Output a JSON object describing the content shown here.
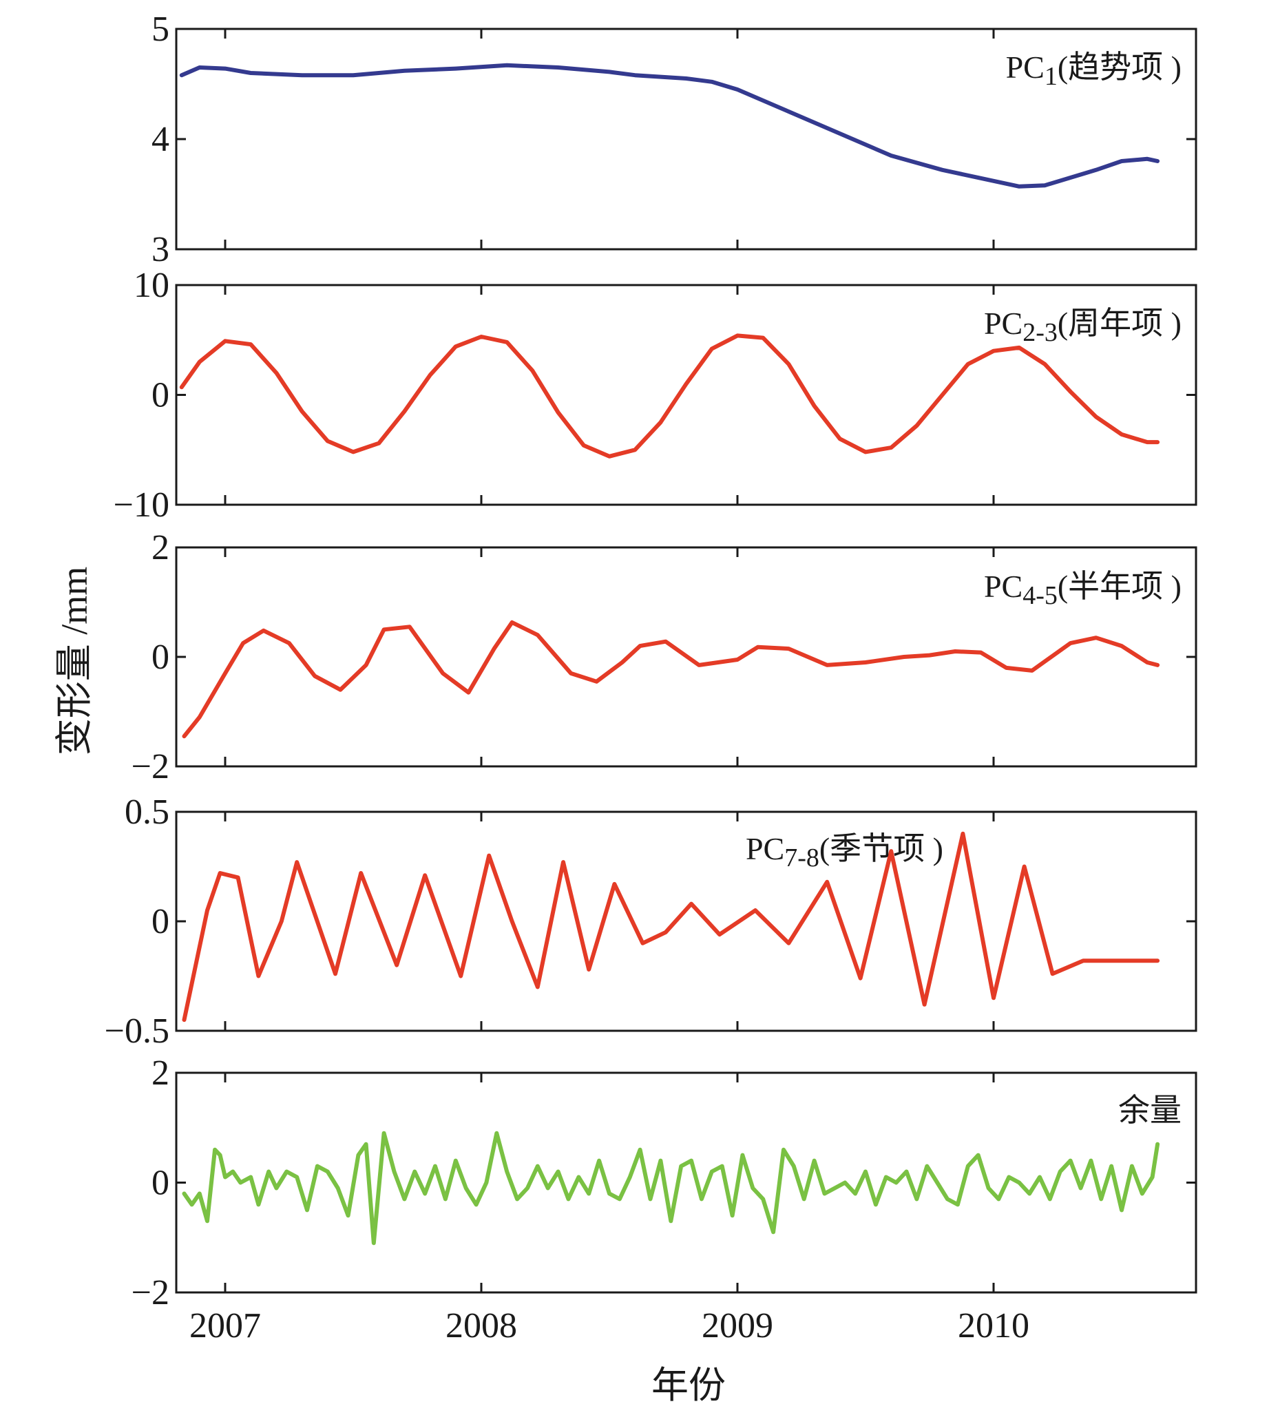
{
  "figure": {
    "ylabel": "变形量 /mm",
    "xlabel": "年份",
    "xticks": [
      "2007",
      "2008",
      "2009",
      "2010"
    ]
  },
  "chart_data": [
    {
      "type": "line",
      "label": "PC",
      "label_sub": "1",
      "label_suffix": "(趋势项 )",
      "color": "#343a8f",
      "ylim": [
        3,
        5
      ],
      "yticks": [
        "5",
        "4",
        "3"
      ],
      "xlim": [
        2006.8,
        2010.8
      ],
      "x": [
        2006.83,
        2006.9,
        2007.0,
        2007.1,
        2007.3,
        2007.5,
        2007.7,
        2007.9,
        2008.1,
        2008.3,
        2008.5,
        2008.6,
        2008.8,
        2008.9,
        2009.0,
        2009.2,
        2009.4,
        2009.6,
        2009.8,
        2010.0,
        2010.1,
        2010.2,
        2010.3,
        2010.4,
        2010.5,
        2010.6,
        2010.64
      ],
      "values": [
        4.58,
        4.65,
        4.64,
        4.6,
        4.58,
        4.58,
        4.62,
        4.64,
        4.67,
        4.65,
        4.61,
        4.58,
        4.55,
        4.52,
        4.45,
        4.25,
        4.05,
        3.85,
        3.72,
        3.62,
        3.57,
        3.58,
        3.65,
        3.72,
        3.8,
        3.82,
        3.8
      ]
    },
    {
      "type": "line",
      "label": "PC",
      "label_sub": "2-3",
      "label_suffix": "(周年项 )",
      "color": "#e43b26",
      "ylim": [
        -10,
        10
      ],
      "yticks": [
        "10",
        "0",
        "−10"
      ],
      "xlim": [
        2006.8,
        2010.8
      ],
      "x": [
        2006.83,
        2006.9,
        2007.0,
        2007.1,
        2007.2,
        2007.3,
        2007.4,
        2007.5,
        2007.6,
        2007.7,
        2007.8,
        2007.9,
        2008.0,
        2008.1,
        2008.2,
        2008.3,
        2008.4,
        2008.5,
        2008.6,
        2008.7,
        2008.8,
        2008.9,
        2009.0,
        2009.1,
        2009.2,
        2009.3,
        2009.4,
        2009.5,
        2009.6,
        2009.7,
        2009.8,
        2009.9,
        2010.0,
        2010.1,
        2010.2,
        2010.3,
        2010.4,
        2010.5,
        2010.6,
        2010.64
      ],
      "values": [
        0.7,
        3.0,
        4.9,
        4.6,
        2.0,
        -1.5,
        -4.2,
        -5.2,
        -4.4,
        -1.5,
        1.8,
        4.4,
        5.3,
        4.8,
        2.2,
        -1.6,
        -4.6,
        -5.6,
        -5.0,
        -2.5,
        1.0,
        4.2,
        5.4,
        5.2,
        2.8,
        -1.0,
        -4.0,
        -5.2,
        -4.8,
        -2.8,
        0.0,
        2.8,
        4.0,
        4.3,
        2.8,
        0.3,
        -2.0,
        -3.6,
        -4.3,
        -4.3
      ]
    },
    {
      "type": "line",
      "label": "PC",
      "label_sub": "4-5",
      "label_suffix": "(半年项 )",
      "color": "#e43b26",
      "ylim": [
        -2,
        2
      ],
      "yticks": [
        "2",
        "0",
        "−2"
      ],
      "xlim": [
        2006.8,
        2010.8
      ],
      "x": [
        2006.84,
        2006.9,
        2007.0,
        2007.07,
        2007.15,
        2007.25,
        2007.35,
        2007.45,
        2007.55,
        2007.62,
        2007.72,
        2007.85,
        2007.95,
        2008.05,
        2008.12,
        2008.22,
        2008.35,
        2008.45,
        2008.55,
        2008.62,
        2008.72,
        2008.85,
        2009.0,
        2009.08,
        2009.2,
        2009.35,
        2009.5,
        2009.65,
        2009.75,
        2009.85,
        2009.95,
        2010.05,
        2010.15,
        2010.3,
        2010.4,
        2010.5,
        2010.6,
        2010.64
      ],
      "values": [
        -1.45,
        -1.1,
        -0.3,
        0.25,
        0.48,
        0.25,
        -0.35,
        -0.6,
        -0.15,
        0.5,
        0.55,
        -0.3,
        -0.65,
        0.15,
        0.63,
        0.4,
        -0.3,
        -0.45,
        -0.1,
        0.2,
        0.28,
        -0.15,
        -0.05,
        0.18,
        0.15,
        -0.15,
        -0.1,
        0.0,
        0.03,
        0.1,
        0.08,
        -0.2,
        -0.25,
        0.25,
        0.35,
        0.2,
        -0.1,
        -0.15
      ]
    },
    {
      "type": "line",
      "label": "PC",
      "label_sub": "7-8",
      "label_suffix": "(季节项 )",
      "color": "#e43b26",
      "ylim": [
        -0.5,
        0.5
      ],
      "yticks": [
        "0.5",
        "0",
        "−0.5"
      ],
      "xlim": [
        2006.8,
        2010.8
      ],
      "x": [
        2006.84,
        2006.93,
        2006.98,
        2007.05,
        2007.13,
        2007.22,
        2007.28,
        2007.43,
        2007.53,
        2007.67,
        2007.78,
        2007.92,
        2008.03,
        2008.12,
        2008.22,
        2008.32,
        2008.42,
        2008.52,
        2008.63,
        2008.72,
        2008.82,
        2008.93,
        2009.07,
        2009.2,
        2009.35,
        2009.48,
        2009.6,
        2009.73,
        2009.88,
        2010.0,
        2010.12,
        2010.23,
        2010.35,
        2010.47,
        2010.58,
        2010.64
      ],
      "values": [
        -0.45,
        0.05,
        0.22,
        0.2,
        -0.25,
        0.0,
        0.27,
        -0.24,
        0.22,
        -0.2,
        0.21,
        -0.25,
        0.3,
        0.0,
        -0.3,
        0.27,
        -0.22,
        0.17,
        -0.1,
        -0.05,
        0.08,
        -0.06,
        0.05,
        -0.1,
        0.18,
        -0.26,
        0.32,
        -0.38,
        0.4,
        -0.35,
        0.25,
        -0.24,
        -0.18,
        -0.18,
        -0.18,
        -0.18
      ]
    },
    {
      "type": "line",
      "label": "余量",
      "color": "#7ac143",
      "ylim": [
        -2,
        2
      ],
      "yticks": [
        "2",
        "0",
        "−2"
      ],
      "xlim": [
        2006.8,
        2010.8
      ],
      "x": [
        2006.84,
        2006.87,
        2006.9,
        2006.93,
        2006.96,
        2006.98,
        2007.0,
        2007.03,
        2007.06,
        2007.1,
        2007.13,
        2007.17,
        2007.2,
        2007.24,
        2007.28,
        2007.32,
        2007.36,
        2007.4,
        2007.44,
        2007.48,
        2007.52,
        2007.55,
        2007.58,
        2007.62,
        2007.66,
        2007.7,
        2007.74,
        2007.78,
        2007.82,
        2007.86,
        2007.9,
        2007.94,
        2007.98,
        2008.02,
        2008.06,
        2008.1,
        2008.14,
        2008.18,
        2008.22,
        2008.26,
        2008.3,
        2008.34,
        2008.38,
        2008.42,
        2008.46,
        2008.5,
        2008.54,
        2008.58,
        2008.62,
        2008.66,
        2008.7,
        2008.74,
        2008.78,
        2008.82,
        2008.86,
        2008.9,
        2008.94,
        2008.98,
        2009.02,
        2009.06,
        2009.1,
        2009.14,
        2009.18,
        2009.22,
        2009.26,
        2009.3,
        2009.34,
        2009.38,
        2009.42,
        2009.46,
        2009.5,
        2009.54,
        2009.58,
        2009.62,
        2009.66,
        2009.7,
        2009.74,
        2009.78,
        2009.82,
        2009.86,
        2009.9,
        2009.94,
        2009.98,
        2010.02,
        2010.06,
        2010.1,
        2010.14,
        2010.18,
        2010.22,
        2010.26,
        2010.3,
        2010.34,
        2010.38,
        2010.42,
        2010.46,
        2010.5,
        2010.54,
        2010.58,
        2010.62,
        2010.64
      ],
      "values": [
        -0.2,
        -0.4,
        -0.2,
        -0.7,
        0.6,
        0.5,
        0.1,
        0.2,
        0.0,
        0.1,
        -0.4,
        0.2,
        -0.1,
        0.2,
        0.1,
        -0.5,
        0.3,
        0.2,
        -0.1,
        -0.6,
        0.5,
        0.7,
        -1.1,
        0.9,
        0.2,
        -0.3,
        0.2,
        -0.2,
        0.3,
        -0.3,
        0.4,
        -0.1,
        -0.4,
        0.0,
        0.9,
        0.2,
        -0.3,
        -0.1,
        0.3,
        -0.1,
        0.2,
        -0.3,
        0.1,
        -0.2,
        0.4,
        -0.2,
        -0.3,
        0.1,
        0.6,
        -0.3,
        0.4,
        -0.7,
        0.3,
        0.4,
        -0.3,
        0.2,
        0.3,
        -0.6,
        0.5,
        -0.1,
        -0.3,
        -0.9,
        0.6,
        0.3,
        -0.3,
        0.4,
        -0.2,
        -0.1,
        0.0,
        -0.2,
        0.2,
        -0.4,
        0.1,
        0.0,
        0.2,
        -0.3,
        0.3,
        0.0,
        -0.3,
        -0.4,
        0.3,
        0.5,
        -0.1,
        -0.3,
        0.1,
        0.0,
        -0.2,
        0.1,
        -0.3,
        0.2,
        0.4,
        -0.1,
        0.4,
        -0.3,
        0.3,
        -0.5,
        0.3,
        -0.2,
        0.1,
        0.7
      ]
    }
  ]
}
